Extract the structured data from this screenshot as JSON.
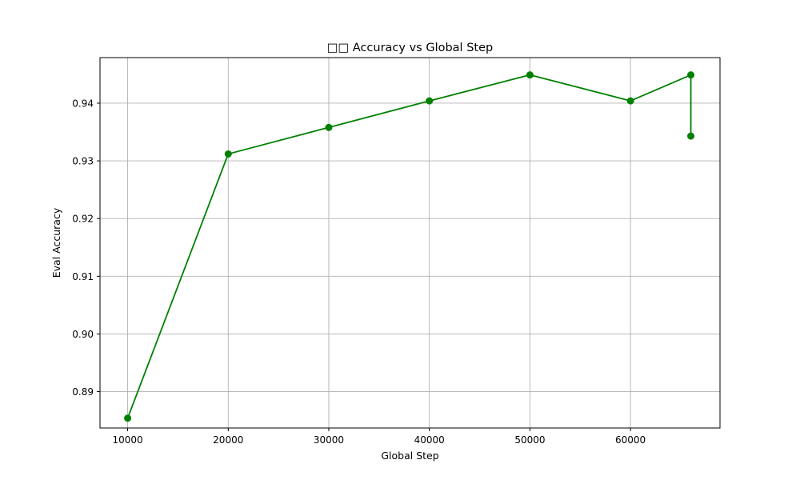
{
  "chart_data": {
    "type": "line",
    "title": "□□ Accuracy vs Global Step",
    "xlabel": "Global Step",
    "ylabel": "Eval Accuracy",
    "xlim": [
      7250,
      68900
    ],
    "ylim": [
      0.8837,
      0.9479
    ],
    "xticks": [
      10000,
      20000,
      30000,
      40000,
      50000,
      60000
    ],
    "yticks": [
      0.89,
      0.9,
      0.91,
      0.92,
      0.93,
      0.94
    ],
    "grid": true,
    "series": [
      {
        "color": "#008000",
        "marker": "circle",
        "points": [
          {
            "x": 10000,
            "y": 0.8854
          },
          {
            "x": 20000,
            "y": 0.9312
          },
          {
            "x": 30000,
            "y": 0.9358
          },
          {
            "x": 40000,
            "y": 0.9404
          },
          {
            "x": 50000,
            "y": 0.9449
          },
          {
            "x": 60000,
            "y": 0.9404
          },
          {
            "x": 66000,
            "y": 0.9449
          },
          {
            "x": 66000,
            "y": 0.9343
          }
        ]
      }
    ]
  }
}
